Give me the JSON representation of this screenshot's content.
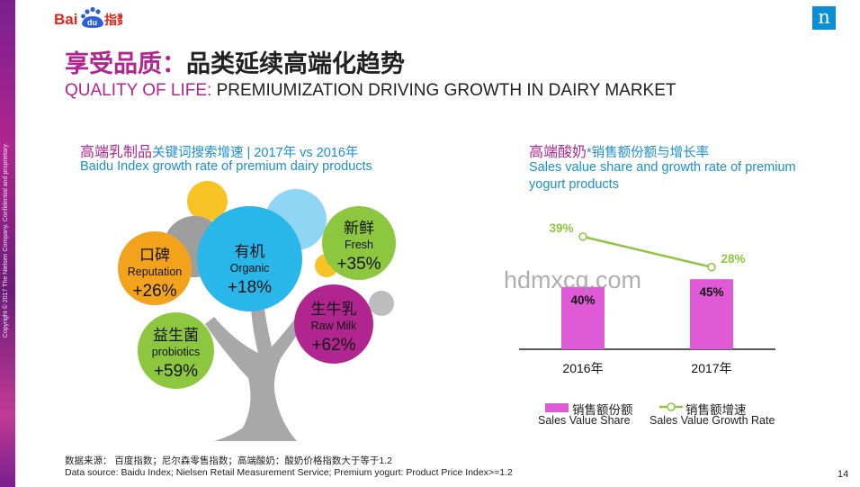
{
  "sidebar": {
    "copyright": "Copyright © 2017 The Nielsen Company. Confidential and proprietary."
  },
  "header": {
    "logo_text": "Bai du 指数",
    "title_cn_prefix": "享受品质：",
    "title_cn_rest": "品类延续高端化趋势",
    "title_en_prefix": "QUALITY OF LIFE:",
    "title_en_rest": " PREMIUMIZATION DRIVING GROWTH IN DAIRY MARKET",
    "brand_mark": "n"
  },
  "left_panel": {
    "title_cn_big": "高端乳制品",
    "title_cn_small": "关键词搜索增速 | 2017年 vs 2016年",
    "title_en": "Baidu Index growth rate of premium dairy products",
    "bubbles": [
      {
        "cn": "口碑",
        "en": "Reputation",
        "value": "+26%",
        "color": "#f2a31b"
      },
      {
        "cn": "有机",
        "en": "Organic",
        "value": "+18%",
        "color": "#29b6e8"
      },
      {
        "cn": "新鲜",
        "en": "Fresh",
        "value": "+35%",
        "color": "#8dc63f"
      },
      {
        "cn": "益生菌",
        "en": "probiotics",
        "value": "+59%",
        "color": "#8dc63f"
      },
      {
        "cn": "生牛乳",
        "en": "Raw Milk",
        "value": "+62%",
        "color": "#b0258f"
      }
    ]
  },
  "right_panel": {
    "title_cn_big": "高端酸奶",
    "title_cn_small": "*销售额份额与增长率",
    "title_en": "Sales value share and growth rate of premium yogurt products"
  },
  "chart_data": {
    "type": "bar",
    "categories": [
      "2016年",
      "2017年"
    ],
    "series": [
      {
        "name": "销售额份额",
        "name_en": "Sales Value Share",
        "kind": "bar",
        "values": [
          40,
          45
        ],
        "labels": [
          "40%",
          "45%"
        ],
        "color": "#e05ad8"
      },
      {
        "name": "销售额增速",
        "name_en": "Sales Value Growth Rate",
        "kind": "line",
        "values": [
          39,
          28
        ],
        "labels": [
          "39%",
          "28%"
        ],
        "color": "#8dc63f"
      }
    ]
  },
  "watermark": "hdmxcq.com",
  "source": {
    "line_cn": "数据来源： 百度指数；尼尔森零售指数；高端酸奶：酸奶价格指数大于等于1.2",
    "line_en": "Data source: Baidu Index; Nielsen Retail Measurement Service; Premium yogurt: Product Price Index>=1.2"
  },
  "page_number": "14"
}
